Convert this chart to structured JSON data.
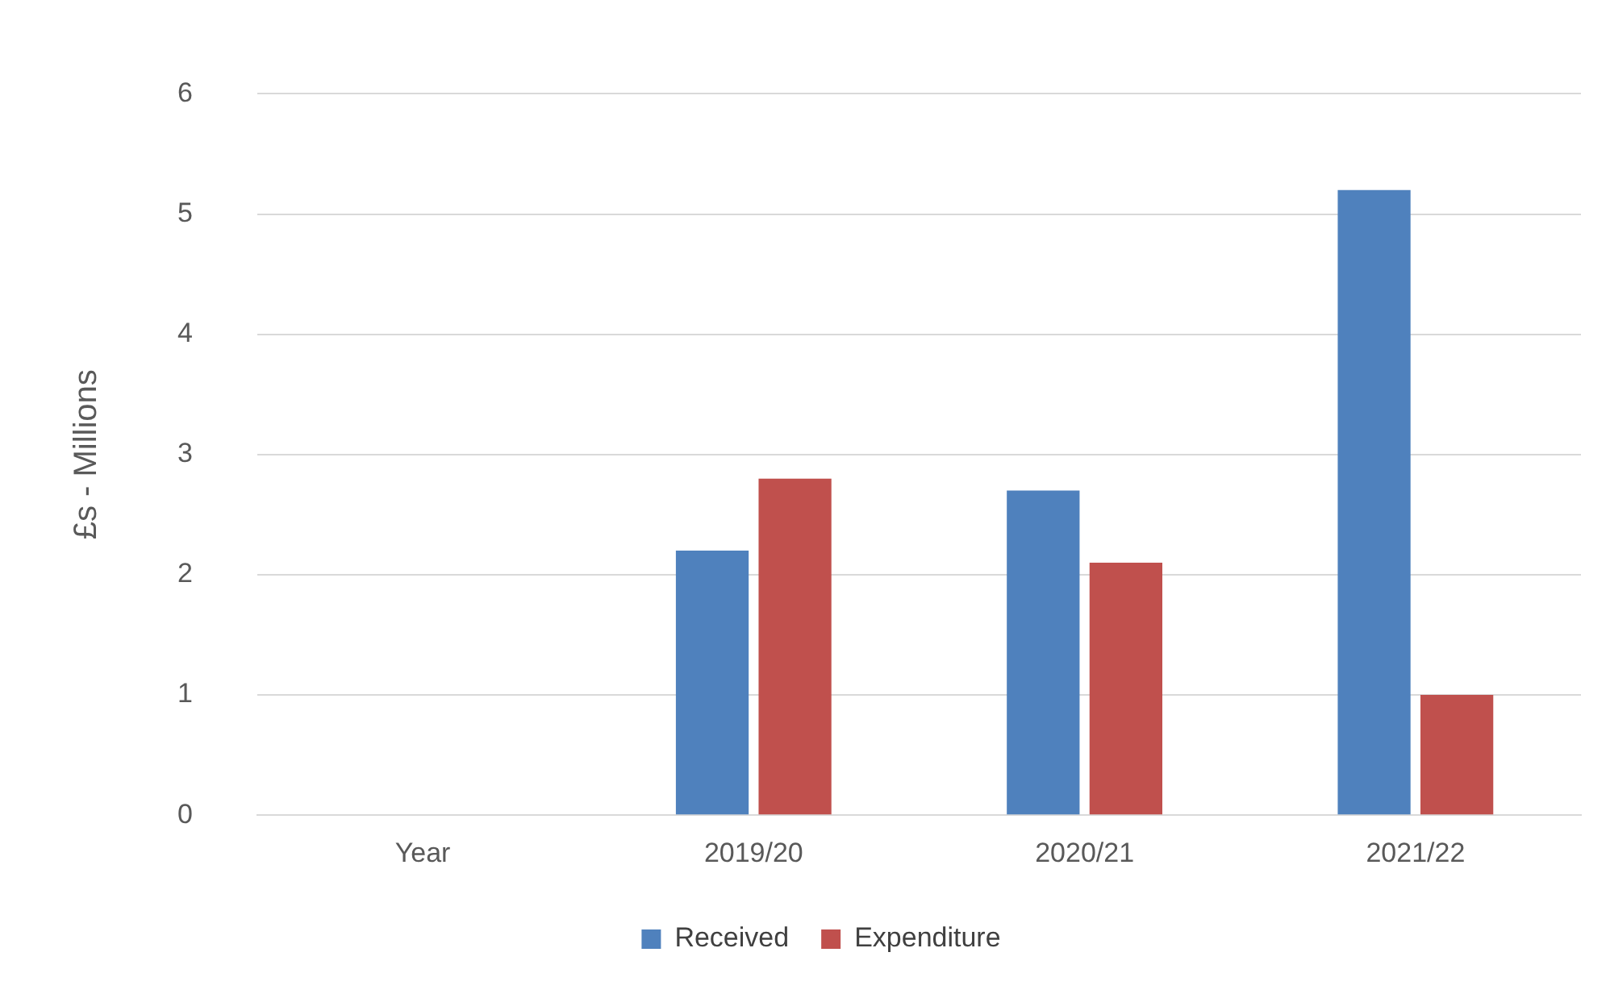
{
  "chart_data": {
    "type": "bar",
    "ylabel": "£s - Millions",
    "categories": [
      "Year",
      "2019/20",
      "2020/21",
      "2021/22"
    ],
    "series": [
      {
        "name": "Received",
        "color": "#4f81bd",
        "values": [
          null,
          2.2,
          2.7,
          5.2
        ]
      },
      {
        "name": "Expenditure",
        "color": "#c0504d",
        "values": [
          null,
          2.8,
          2.1,
          1.0
        ]
      }
    ],
    "ylim": [
      0,
      6
    ],
    "yticks": [
      0,
      1,
      2,
      3,
      4,
      5,
      6
    ],
    "grid": "y",
    "legend": "bottom"
  }
}
